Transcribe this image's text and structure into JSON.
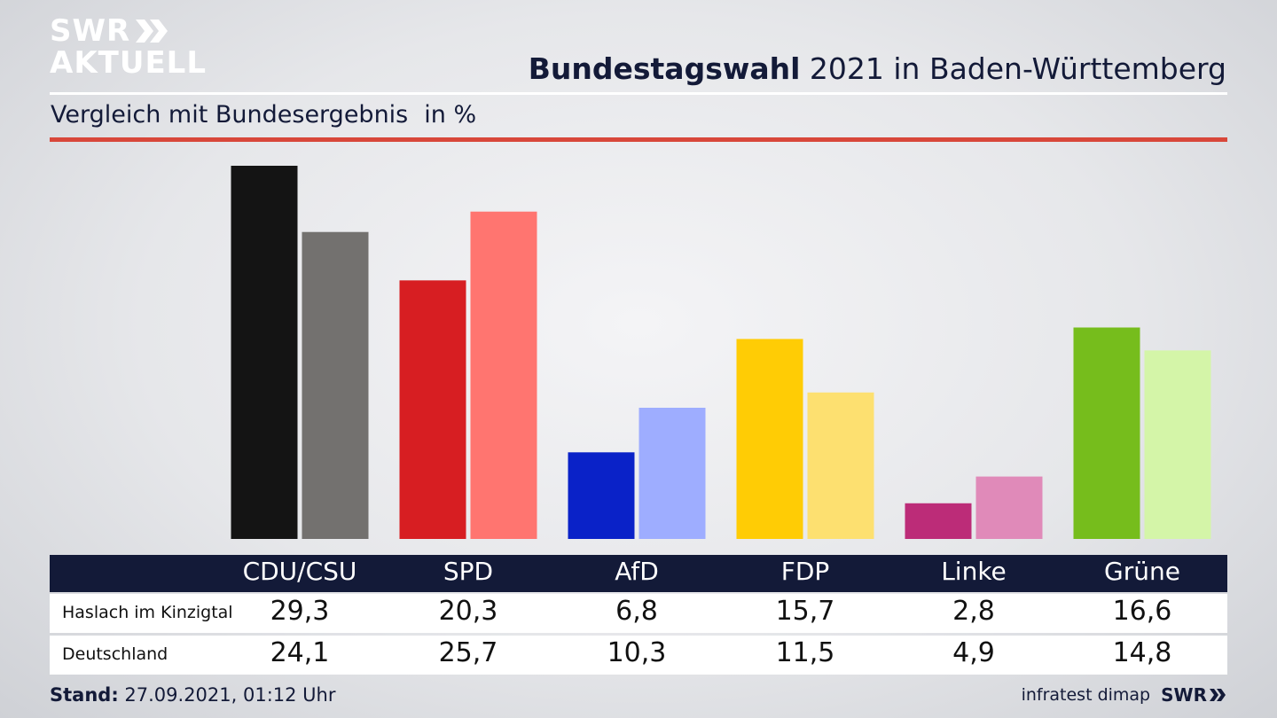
{
  "logo": {
    "line1": "SWR",
    "line2": "AKTUELL"
  },
  "title": {
    "bold": "Bundestagswahl",
    "rest": " 2021 in Baden-Württemberg"
  },
  "subtitle": {
    "main": "Vergleich mit Bundesergebnis",
    "unit": "in %"
  },
  "colors": {
    "red_rule": "#d8473a",
    "table_header": "#131a38",
    "CDU/CSU": [
      "#141414",
      "#73716f"
    ],
    "SPD": [
      "#d71e22",
      "#ff7570"
    ],
    "AfD": [
      "#0a22c8",
      "#9eadff"
    ],
    "FDP": [
      "#ffcc05",
      "#fde070"
    ],
    "Linke": [
      "#bc2c78",
      "#e08ab9"
    ],
    "Grüne": [
      "#76bd1c",
      "#d4f5a8"
    ]
  },
  "chart_data": {
    "type": "bar",
    "categories": [
      "CDU/CSU",
      "SPD",
      "AfD",
      "FDP",
      "Linke",
      "Grüne"
    ],
    "series": [
      {
        "name": "Haslach im Kinzigtal",
        "values": [
          29.3,
          20.3,
          6.8,
          15.7,
          2.8,
          16.6
        ]
      },
      {
        "name": "Deutschland",
        "values": [
          24.1,
          25.7,
          10.3,
          11.5,
          4.9,
          14.8
        ]
      }
    ],
    "value_labels": [
      [
        "29,3",
        "20,3",
        "6,8",
        "15,7",
        "2,8",
        "16,6"
      ],
      [
        "24,1",
        "25,7",
        "10,3",
        "11,5",
        "4,9",
        "14,8"
      ]
    ],
    "ylim": [
      0,
      29.3
    ]
  },
  "footer": {
    "stand_label": "Stand:",
    "stand_value": " 27.09.2021, 01:12 Uhr",
    "source": "infratest dimap",
    "brand": "SWR"
  }
}
